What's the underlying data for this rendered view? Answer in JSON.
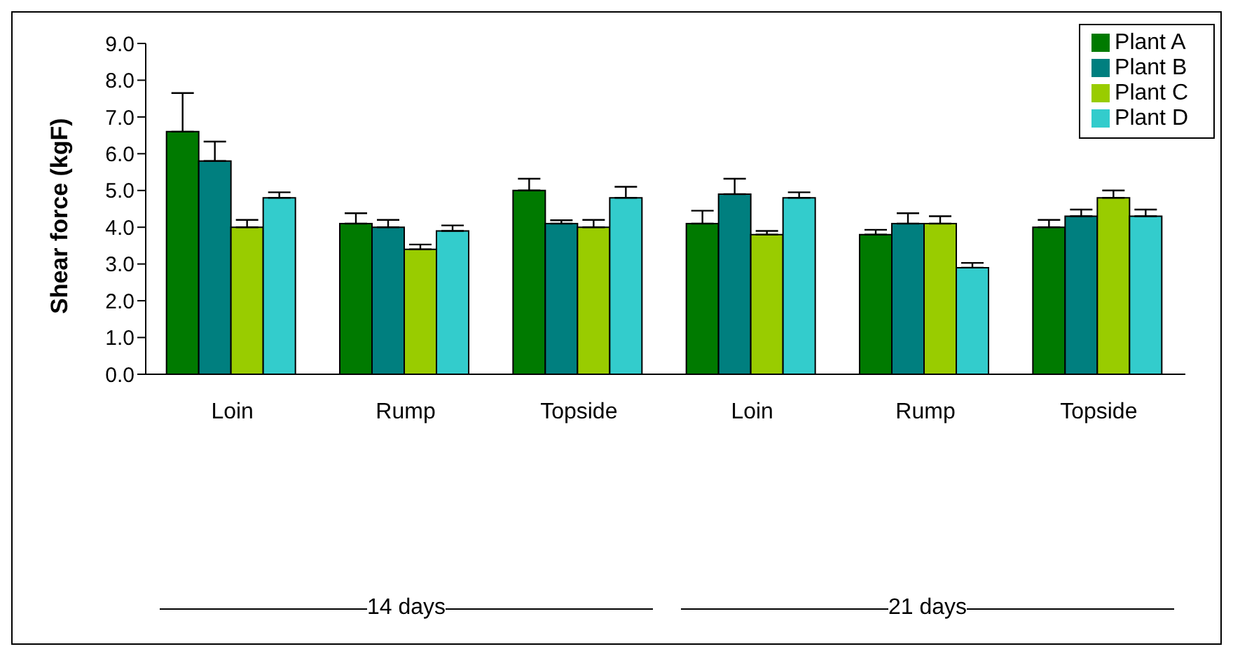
{
  "chart_data": {
    "type": "bar",
    "ylabel": "Shear force (kgF)",
    "categories": [
      "Loin",
      "Rump",
      "Topside",
      "Loin",
      "Rump",
      "Topside"
    ],
    "ylim": [
      0,
      9
    ],
    "yticks": [
      {
        "value": 0,
        "label": "0.0"
      },
      {
        "value": 1,
        "label": "1.0"
      },
      {
        "value": 2,
        "label": "2.0"
      },
      {
        "value": 3,
        "label": "3.0"
      },
      {
        "value": 4,
        "label": "4.0"
      },
      {
        "value": 5,
        "label": "5.0"
      },
      {
        "value": 6,
        "label": "6.0"
      },
      {
        "value": 7,
        "label": "7.0"
      },
      {
        "value": 8,
        "label": "8.0"
      },
      {
        "value": 9,
        "label": "9.0"
      }
    ],
    "series": [
      {
        "name": "Plant A",
        "color": "#007a00",
        "values": [
          6.6,
          4.1,
          5.0,
          4.1,
          3.8,
          4.0
        ],
        "errors": [
          [
            6.6,
            7.65
          ],
          [
            4.1,
            4.38
          ],
          [
            5.0,
            5.32
          ],
          [
            4.1,
            4.45
          ],
          [
            3.8,
            3.93
          ],
          [
            4.0,
            4.2
          ]
        ]
      },
      {
        "name": "Plant B",
        "color": "#007f7f",
        "values": [
          5.8,
          4.0,
          4.1,
          4.9,
          4.1,
          4.3
        ],
        "errors": [
          [
            5.8,
            6.33
          ],
          [
            4.0,
            4.2
          ],
          [
            4.1,
            4.19
          ],
          [
            4.9,
            5.32
          ],
          [
            4.1,
            4.38
          ],
          [
            4.3,
            4.48
          ]
        ]
      },
      {
        "name": "Plant C",
        "color": "#99cc00",
        "values": [
          4.0,
          3.4,
          4.0,
          3.8,
          4.1,
          4.8
        ],
        "errors": [
          [
            4.0,
            4.2
          ],
          [
            3.4,
            3.53
          ],
          [
            4.0,
            4.2
          ],
          [
            3.8,
            3.9
          ],
          [
            4.1,
            4.3
          ],
          [
            4.8,
            5.0
          ]
        ]
      },
      {
        "name": "Plant D",
        "color": "#33cccc",
        "values": [
          4.8,
          3.9,
          4.8,
          4.8,
          2.9,
          4.3
        ],
        "errors": [
          [
            4.8,
            4.95
          ],
          [
            3.9,
            4.05
          ],
          [
            4.8,
            5.1
          ],
          [
            4.8,
            4.95
          ],
          [
            2.9,
            3.03
          ],
          [
            4.3,
            4.48
          ]
        ]
      }
    ],
    "annotations": [
      "14 days",
      "21 days"
    ],
    "legend": "top right",
    "grid": false
  }
}
